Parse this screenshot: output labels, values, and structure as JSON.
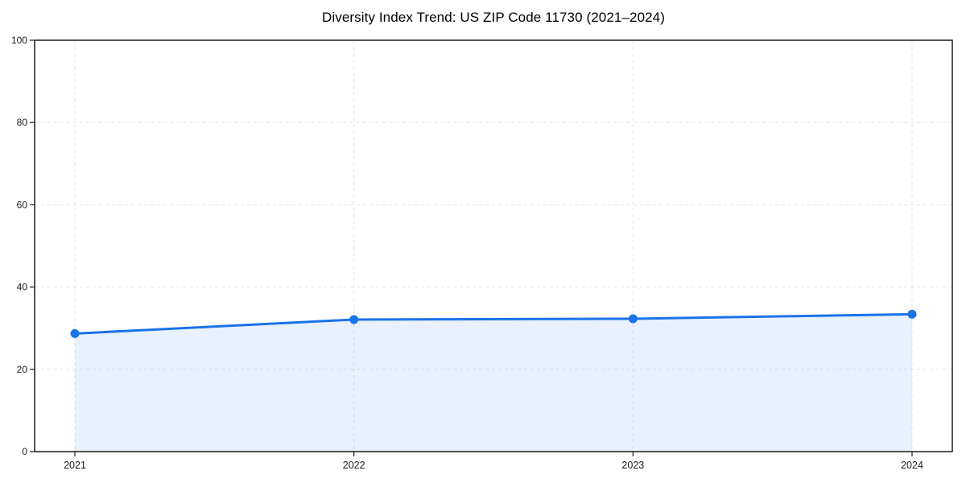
{
  "chart_data": {
    "type": "line",
    "title": "Diversity Index Trend: US ZIP Code 11730 (2021–2024)",
    "categories": [
      "2021",
      "2022",
      "2023",
      "2024"
    ],
    "series": [
      {
        "name": "Diversity Index",
        "values": [
          28.7,
          32.1,
          32.3,
          33.4
        ]
      }
    ],
    "xlabel": "",
    "ylabel": "",
    "ylim": [
      0,
      100
    ],
    "yticks": [
      0,
      20,
      40,
      60,
      80,
      100
    ],
    "grid": "dashed-both-axes",
    "legend": "none",
    "area_fill": true,
    "markers": true,
    "colors": {
      "line": "#1a73e8",
      "marker": "#1a73e8",
      "fill": "rgba(26,115,232,0.10)",
      "grid": "#e4e4e4",
      "spine": "#1c1c1c",
      "tick_text": "#1a1a1a"
    }
  }
}
